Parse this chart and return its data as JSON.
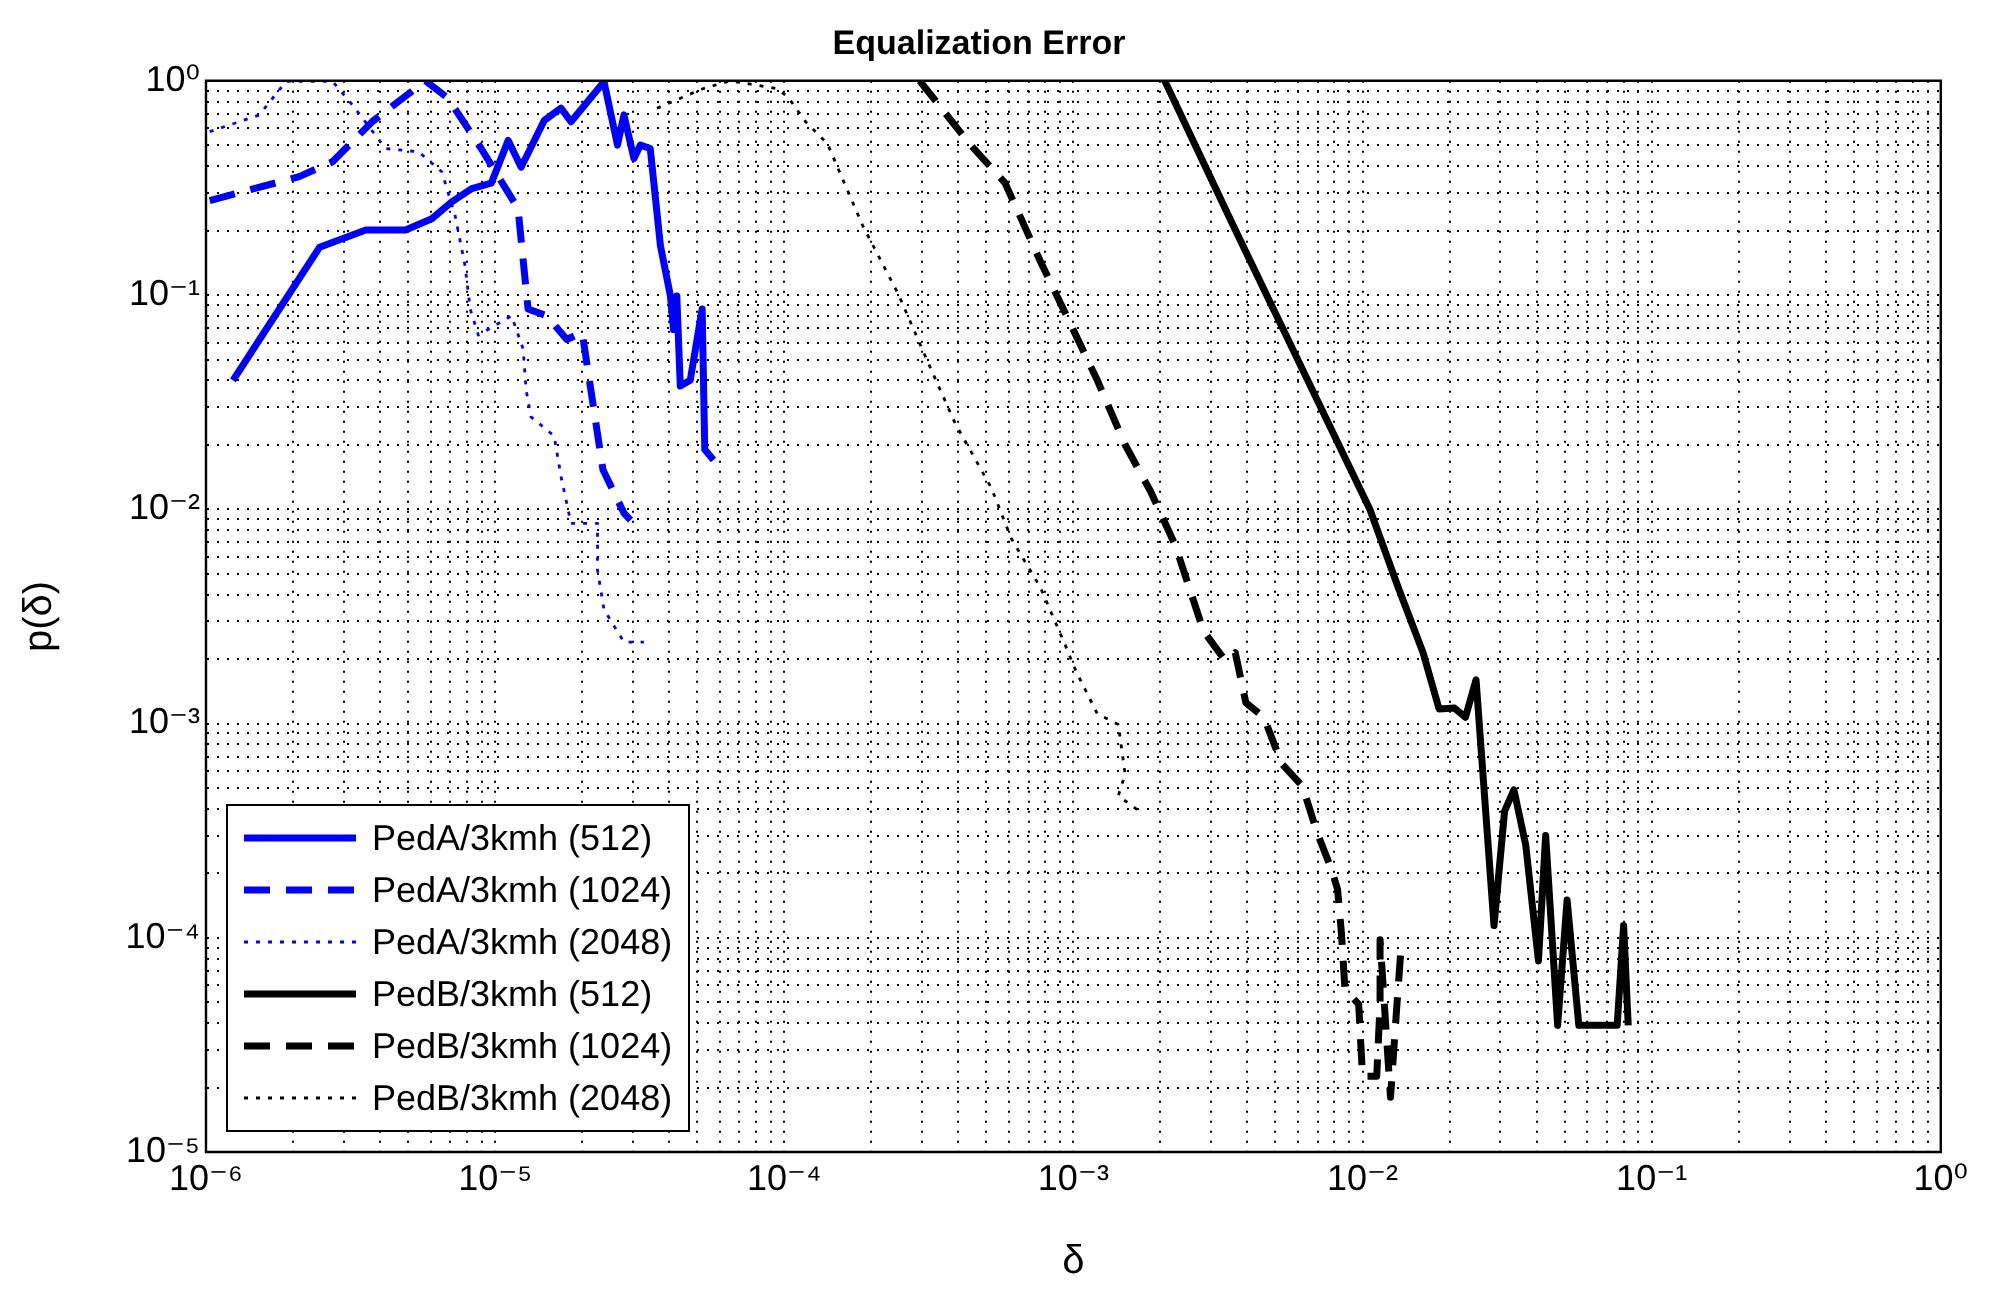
{
  "chart_data": {
    "type": "line",
    "title": "Equalization Error",
    "xlabel": "δ",
    "ylabel": "p(δ)",
    "log": "xy",
    "grid": true,
    "legend": "bottom left",
    "xlim": [
      1e-06,
      1
    ],
    "ylim": [
      1e-05,
      1
    ],
    "xticks": [
      {
        "value": 1e-06,
        "label": "10⁻⁶"
      },
      {
        "value": 2e-06,
        "label": null
      },
      {
        "value": 3e-06,
        "label": null
      },
      {
        "value": 4e-06,
        "label": null
      },
      {
        "value": 5e-06,
        "label": null
      },
      {
        "value": 6e-06,
        "label": null
      },
      {
        "value": 7e-06,
        "label": null
      },
      {
        "value": 8e-06,
        "label": null
      },
      {
        "value": 9e-06,
        "label": null
      },
      {
        "value": 1e-05,
        "label": "10⁻⁵"
      },
      {
        "value": 2e-05,
        "label": null
      },
      {
        "value": 3e-05,
        "label": null
      },
      {
        "value": 4e-05,
        "label": null
      },
      {
        "value": 5e-05,
        "label": null
      },
      {
        "value": 6e-05,
        "label": null
      },
      {
        "value": 7e-05,
        "label": null
      },
      {
        "value": 8e-05,
        "label": null
      },
      {
        "value": 9e-05,
        "label": null
      },
      {
        "value": 0.0001,
        "label": "10⁻⁴"
      },
      {
        "value": 0.0002,
        "label": null
      },
      {
        "value": 0.0003,
        "label": null
      },
      {
        "value": 0.0004,
        "label": null
      },
      {
        "value": 0.0005,
        "label": null
      },
      {
        "value": 0.0006,
        "label": null
      },
      {
        "value": 0.0007,
        "label": null
      },
      {
        "value": 0.0008,
        "label": null
      },
      {
        "value": 0.0009,
        "label": null
      },
      {
        "value": 0.001,
        "label": "10⁻³"
      },
      {
        "value": 0.002,
        "label": null
      },
      {
        "value": 0.003,
        "label": null
      },
      {
        "value": 0.004,
        "label": null
      },
      {
        "value": 0.005,
        "label": null
      },
      {
        "value": 0.006,
        "label": null
      },
      {
        "value": 0.007,
        "label": null
      },
      {
        "value": 0.008,
        "label": null
      },
      {
        "value": 0.009,
        "label": null
      },
      {
        "value": 0.01,
        "label": "10⁻²"
      },
      {
        "value": 0.02,
        "label": null
      },
      {
        "value": 0.03,
        "label": null
      },
      {
        "value": 0.04,
        "label": null
      },
      {
        "value": 0.05,
        "label": null
      },
      {
        "value": 0.06,
        "label": null
      },
      {
        "value": 0.07,
        "label": null
      },
      {
        "value": 0.08,
        "label": null
      },
      {
        "value": 0.09,
        "label": null
      },
      {
        "value": 0.1,
        "label": "10⁻¹"
      },
      {
        "value": 0.2,
        "label": null
      },
      {
        "value": 0.3,
        "label": null
      },
      {
        "value": 0.4,
        "label": null
      },
      {
        "value": 0.5,
        "label": null
      },
      {
        "value": 0.6,
        "label": null
      },
      {
        "value": 0.7,
        "label": null
      },
      {
        "value": 0.8,
        "label": null
      },
      {
        "value": 0.9,
        "label": null
      },
      {
        "value": 1,
        "label": "10⁰"
      }
    ],
    "yticks": [
      {
        "value": 1e-05,
        "label": "10⁻⁵"
      },
      {
        "value": 2e-05,
        "label": null
      },
      {
        "value": 3e-05,
        "label": null
      },
      {
        "value": 4e-05,
        "label": null
      },
      {
        "value": 5e-05,
        "label": null
      },
      {
        "value": 6e-05,
        "label": null
      },
      {
        "value": 7e-05,
        "label": null
      },
      {
        "value": 8e-05,
        "label": null
      },
      {
        "value": 9e-05,
        "label": null
      },
      {
        "value": 0.0001,
        "label": "10⁻⁴"
      },
      {
        "value": 0.0002,
        "label": null
      },
      {
        "value": 0.0003,
        "label": null
      },
      {
        "value": 0.0004,
        "label": null
      },
      {
        "value": 0.0005,
        "label": null
      },
      {
        "value": 0.0006,
        "label": null
      },
      {
        "value": 0.0007,
        "label": null
      },
      {
        "value": 0.0008,
        "label": null
      },
      {
        "value": 0.0009,
        "label": null
      },
      {
        "value": 0.001,
        "label": "10⁻³"
      },
      {
        "value": 0.002,
        "label": null
      },
      {
        "value": 0.003,
        "label": null
      },
      {
        "value": 0.004,
        "label": null
      },
      {
        "value": 0.005,
        "label": null
      },
      {
        "value": 0.006,
        "label": null
      },
      {
        "value": 0.007,
        "label": null
      },
      {
        "value": 0.008,
        "label": null
      },
      {
        "value": 0.009,
        "label": null
      },
      {
        "value": 0.01,
        "label": "10⁻²"
      },
      {
        "value": 0.02,
        "label": null
      },
      {
        "value": 0.03,
        "label": null
      },
      {
        "value": 0.04,
        "label": null
      },
      {
        "value": 0.05,
        "label": null
      },
      {
        "value": 0.06,
        "label": null
      },
      {
        "value": 0.07,
        "label": null
      },
      {
        "value": 0.08,
        "label": null
      },
      {
        "value": 0.09,
        "label": null
      },
      {
        "value": 0.1,
        "label": "10⁻¹"
      },
      {
        "value": 0.2,
        "label": null
      },
      {
        "value": 0.3,
        "label": null
      },
      {
        "value": 0.4,
        "label": null
      },
      {
        "value": 0.5,
        "label": null
      },
      {
        "value": 0.6,
        "label": null
      },
      {
        "value": 0.7,
        "label": null
      },
      {
        "value": 0.8,
        "label": null
      },
      {
        "value": 0.9,
        "label": null
      },
      {
        "value": 1,
        "label": "10⁰"
      }
    ],
    "series": [
      {
        "name": "PedA/3kmh (512)",
        "color": "#0000ff",
        "line_style": "solid",
        "x": [
          1.24e-06,
          2.47e-06,
          3.57e-06,
          4.9e-06,
          6.04e-06,
          7.08e-06,
          8.3e-06,
          9.7e-06,
          1.11e-05,
          1.23e-05,
          1.48e-05,
          1.69e-05,
          1.83e-05,
          2.38e-05,
          2.65e-05,
          2.79e-05,
          3.02e-05,
          3.18e-05,
          3.44e-05,
          3.73e-05,
          4.04e-05,
          4.14e-05,
          4.25e-05,
          4.37e-05,
          4.73e-05,
          5.2e-05,
          5.31e-05,
          5.69e-05
        ],
        "values": [
          0.04,
          0.167,
          0.201,
          0.201,
          0.227,
          0.272,
          0.314,
          0.333,
          0.527,
          0.395,
          0.654,
          0.745,
          0.644,
          0.99,
          0.501,
          0.693,
          0.434,
          0.501,
          0.483,
          0.17,
          0.099,
          0.069,
          0.099,
          0.0376,
          0.04,
          0.086,
          0.019,
          0.017
        ]
      },
      {
        "name": "PedA/3kmh (1024)",
        "color": "#0000ff",
        "line_style": "dashed",
        "x": [
          1.03e-06,
          2.1e-06,
          2.74e-06,
          3.76e-06,
          5.74e-06,
          6.87e-06,
          8.95e-06,
          1.2e-05,
          1.3e-05,
          1.51e-05,
          1.77e-05,
          2e-05,
          2.36e-05,
          2.79e-05,
          2.94e-05
        ],
        "values": [
          0.276,
          0.357,
          0.419,
          0.645,
          1.0,
          0.829,
          0.483,
          0.253,
          0.086,
          0.08,
          0.062,
          0.067,
          0.0153,
          0.0096,
          0.0089
        ]
      },
      {
        "name": "PedA/3kmh (2048)",
        "color": "#0000ff",
        "line_style": "dotted",
        "x": [
          1.03e-06,
          1.53e-06,
          1.89e-06,
          2.74e-06,
          3.21e-06,
          4.18e-06,
          5.44e-06,
          6.54e-06,
          7.27e-06,
          7.87e-06,
          8.2e-06,
          8.75e-06,
          1.14e-05,
          1.25e-05,
          1.28e-05,
          1.33e-05,
          1.6e-05,
          1.69e-05,
          1.83e-05,
          2.26e-05,
          2.26e-05,
          2.38e-05,
          2.79e-05,
          3.27e-05
        ],
        "values": [
          0.579,
          0.693,
          0.993,
          0.993,
          0.771,
          0.483,
          0.466,
          0.376,
          0.235,
          0.137,
          0.086,
          0.065,
          0.08,
          0.056,
          0.036,
          0.027,
          0.022,
          0.0142,
          0.0086,
          0.0086,
          0.0052,
          0.0034,
          0.0024,
          0.0024
        ]
      },
      {
        "name": "PedB/3kmh (512)",
        "color": "#000000",
        "line_style": "solid",
        "x": [
          0.00207,
          0.00353,
          0.0106,
          0.0133,
          0.0162,
          0.0184,
          0.0208,
          0.0227,
          0.0247,
          0.0285,
          0.031,
          0.0334,
          0.0367,
          0.0406,
          0.043,
          0.0473,
          0.051,
          0.056,
          0.076,
          0.08,
          0.083
        ],
        "values": [
          1.0,
          0.218,
          0.01,
          0.0043,
          0.00214,
          0.00117,
          0.00118,
          0.00107,
          0.0016,
          0.000114,
          0.00039,
          0.00049,
          0.00027,
          7.8e-05,
          0.0003,
          3.9e-05,
          0.00015,
          3.9e-05,
          3.9e-05,
          0.000114,
          3.9e-05
        ]
      },
      {
        "name": "PedB/3kmh (1024)",
        "color": "#000000",
        "line_style": "dashed",
        "x": [
          0.000294,
          0.000437,
          0.00058,
          0.00077,
          0.00096,
          0.00121,
          0.00151,
          0.00185,
          0.00225,
          0.00282,
          0.00334,
          0.00363,
          0.00395,
          0.00456,
          0.00525,
          0.0062,
          0.00696,
          0.0078,
          0.0082,
          0.00845,
          0.0087,
          0.0097,
          0.01,
          0.0112,
          0.0115,
          0.0115,
          0.0125,
          0.0131,
          0.0136
        ],
        "values": [
          1.0,
          0.509,
          0.334,
          0.143,
          0.077,
          0.04,
          0.02,
          0.0121,
          0.0068,
          0.0027,
          0.00198,
          0.00214,
          0.00125,
          0.00107,
          0.00065,
          0.00051,
          0.00031,
          0.00021,
          0.000168,
          0.000106,
          5.7e-05,
          4.9e-05,
          2.26e-05,
          2.26e-05,
          4.9e-05,
          9.8e-05,
          1.8e-05,
          4.5e-05,
          9.1e-05
        ]
      },
      {
        "name": "PedB/3kmh (2048)",
        "color": "#000000",
        "line_style": "dotted",
        "x": [
          3.63e-05,
          5.25e-05,
          6.5e-05,
          9.4e-05,
          0.000103,
          0.000119,
          0.000141,
          0.000187,
          0.000248,
          0.000311,
          0.00039,
          0.00052,
          0.00061,
          0.00077,
          0.00094,
          0.00102,
          0.00121,
          0.00143,
          0.00151,
          0.00143,
          0.00169
        ],
        "values": [
          0.745,
          0.92,
          1.0,
          0.92,
          0.84,
          0.64,
          0.509,
          0.21,
          0.101,
          0.05,
          0.0252,
          0.0126,
          0.0073,
          0.0043,
          0.0023,
          0.00176,
          0.00111,
          0.00099,
          0.00058,
          0.00046,
          0.00039
        ]
      }
    ]
  }
}
